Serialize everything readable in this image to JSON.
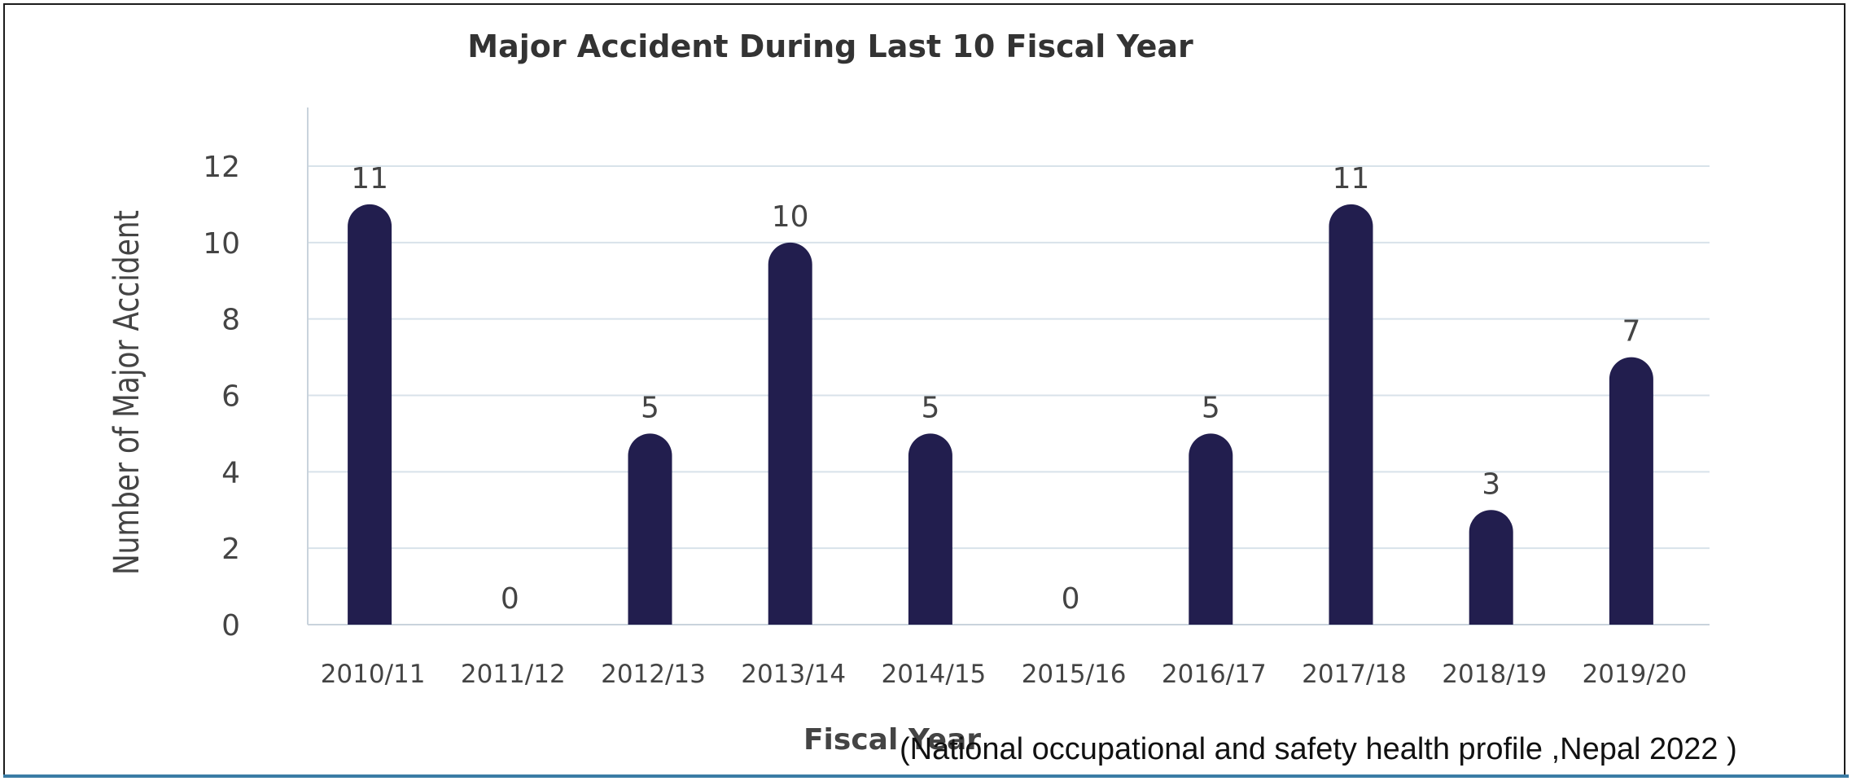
{
  "source_note": "(National occupational and safety  health profile ,Nepal 2022 )",
  "colors": {
    "bar": "#221e4e",
    "grid": "#d8e2ea",
    "axis": "#c9d3dc",
    "text": "#444444",
    "title": "#333333",
    "frame_bottom": "#3a7ca5"
  },
  "chart_data": {
    "type": "bar",
    "title": "Major Accident During Last 10 Fiscal Year",
    "xlabel": "Fiscal Year",
    "ylabel": "Number of Major Accident",
    "categories": [
      "2010/11",
      "2011/12",
      "2012/13",
      "2013/14",
      "2014/15",
      "2015/16",
      "2016/17",
      "2017/18",
      "2018/19",
      "2019/20"
    ],
    "values": [
      11,
      0,
      5,
      10,
      5,
      0,
      5,
      11,
      3,
      7
    ],
    "data_labels": [
      "11",
      "0",
      "5",
      "10",
      "5",
      "0",
      "5",
      "11",
      "3",
      "7"
    ],
    "ylim": [
      0,
      12
    ],
    "yticks": [
      0,
      2,
      4,
      6,
      8,
      10,
      12
    ],
    "grid": true,
    "legend": "none"
  }
}
